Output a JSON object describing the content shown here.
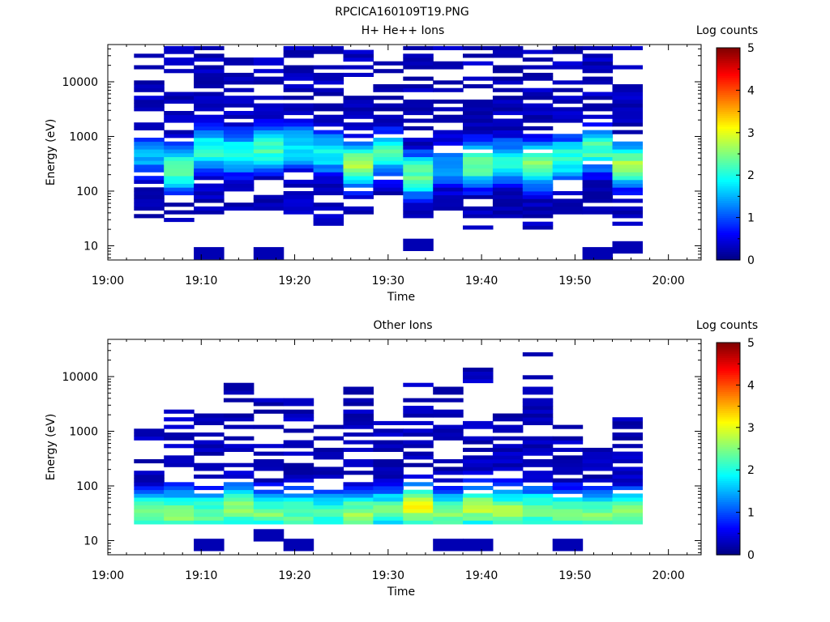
{
  "figure_title": "RPCICA160109T19.PNG",
  "colorbar": {
    "label": "Log counts",
    "ticks": [
      0,
      1,
      2,
      3,
      4,
      5
    ],
    "range": [
      0,
      5
    ]
  },
  "chart_data": [
    {
      "type": "heatmap",
      "title": "H+ He++ Ions",
      "xlabel": "Time",
      "ylabel": "Energy (eV)",
      "x_tick_labels": [
        "19:00",
        "19:10",
        "19:20",
        "19:30",
        "19:40",
        "19:50",
        "20:00"
      ],
      "xlim_minutes": [
        0,
        63.5
      ],
      "y_scale": "log",
      "ylim": [
        5.5,
        48000
      ],
      "y_tick_labels": [
        "10",
        "100",
        "1000",
        "10000"
      ],
      "time_bins_minutes": [
        [
          2.8,
          6.0
        ],
        [
          6.0,
          9.2
        ],
        [
          9.2,
          12.4
        ],
        [
          12.4,
          15.6
        ],
        [
          15.6,
          18.8
        ],
        [
          18.8,
          22.0
        ],
        [
          22.0,
          25.2
        ],
        [
          25.2,
          28.4
        ],
        [
          28.4,
          31.6
        ],
        [
          31.6,
          34.8
        ],
        [
          34.8,
          38.0
        ],
        [
          38.0,
          41.2
        ],
        [
          41.2,
          44.4
        ],
        [
          44.4,
          47.6
        ],
        [
          47.6,
          50.8
        ],
        [
          50.8,
          54.0
        ],
        [
          54.0,
          57.2
        ]
      ],
      "column_profiles": [
        {
          "low_eV": 25,
          "high_eV": 45000,
          "peak_eV": 450,
          "peak_log": 1.5,
          "extra_low_eV": null
        },
        {
          "low_eV": 28,
          "high_eV": 45000,
          "peak_eV": 260,
          "peak_log": 2.4,
          "extra_low_eV": null
        },
        {
          "low_eV": 40,
          "high_eV": 45000,
          "peak_eV": 600,
          "peak_log": 2.1,
          "extra_low_eV": 7
        },
        {
          "low_eV": 30,
          "high_eV": 45000,
          "peak_eV": 500,
          "peak_log": 2.0,
          "extra_low_eV": null
        },
        {
          "low_eV": 18,
          "high_eV": 45000,
          "peak_eV": 600,
          "peak_log": 2.2,
          "extra_low_eV": 7
        },
        {
          "low_eV": 30,
          "high_eV": 45000,
          "peak_eV": 650,
          "peak_log": 1.8,
          "extra_low_eV": null
        },
        {
          "low_eV": 22,
          "high_eV": 45000,
          "peak_eV": 500,
          "peak_log": 1.9,
          "extra_low_eV": null
        },
        {
          "low_eV": 40,
          "high_eV": 45000,
          "peak_eV": 300,
          "peak_log": 2.7,
          "extra_low_eV": null
        },
        {
          "low_eV": 70,
          "high_eV": 45000,
          "peak_eV": 500,
          "peak_log": 2.2,
          "extra_low_eV": null
        },
        {
          "low_eV": 30,
          "high_eV": 45000,
          "peak_eV": 200,
          "peak_log": 2.4,
          "extra_low_eV": 10
        },
        {
          "low_eV": 18,
          "high_eV": 45000,
          "peak_eV": 300,
          "peak_log": 1.4,
          "extra_low_eV": null
        },
        {
          "low_eV": 16,
          "high_eV": 45000,
          "peak_eV": 300,
          "peak_log": 2.4,
          "extra_low_eV": null
        },
        {
          "low_eV": 30,
          "high_eV": 45000,
          "peak_eV": 350,
          "peak_log": 2.0,
          "extra_low_eV": null
        },
        {
          "low_eV": 16,
          "high_eV": 45000,
          "peak_eV": 300,
          "peak_log": 2.6,
          "extra_low_eV": null
        },
        {
          "low_eV": 40,
          "high_eV": 45000,
          "peak_eV": 400,
          "peak_log": 2.1,
          "extra_low_eV": null
        },
        {
          "low_eV": 40,
          "high_eV": 45000,
          "peak_eV": 600,
          "peak_log": 2.3,
          "extra_low_eV": 7
        },
        {
          "low_eV": 25,
          "high_eV": 45000,
          "peak_eV": 300,
          "peak_log": 2.6,
          "extra_low_eV": 9
        }
      ]
    },
    {
      "type": "heatmap",
      "title": "Other Ions",
      "xlabel": "Time",
      "ylabel": "Energy (eV)",
      "x_tick_labels": [
        "19:00",
        "19:10",
        "19:20",
        "19:30",
        "19:40",
        "19:50",
        "20:00"
      ],
      "xlim_minutes": [
        0,
        63.5
      ],
      "y_scale": "log",
      "ylim": [
        5.5,
        48000
      ],
      "y_tick_labels": [
        "10",
        "100",
        "1000",
        "10000"
      ],
      "time_bins_minutes": [
        [
          2.8,
          6.0
        ],
        [
          6.0,
          9.2
        ],
        [
          9.2,
          12.4
        ],
        [
          12.4,
          15.6
        ],
        [
          15.6,
          18.8
        ],
        [
          18.8,
          22.0
        ],
        [
          22.0,
          25.2
        ],
        [
          25.2,
          28.4
        ],
        [
          28.4,
          31.6
        ],
        [
          31.6,
          34.8
        ],
        [
          34.8,
          38.0
        ],
        [
          38.0,
          41.2
        ],
        [
          41.2,
          44.4
        ],
        [
          44.4,
          47.6
        ],
        [
          47.6,
          50.8
        ],
        [
          50.8,
          54.0
        ],
        [
          54.0,
          57.2
        ]
      ],
      "column_profiles": [
        {
          "low_eV": 16,
          "high_eV": 1200,
          "peak_eV": 32,
          "peak_log": 2.6,
          "extra_low_eV": null
        },
        {
          "low_eV": 20,
          "high_eV": 2500,
          "peak_eV": 32,
          "peak_log": 2.6,
          "extra_low_eV": null
        },
        {
          "low_eV": 20,
          "high_eV": 2900,
          "peak_eV": 32,
          "peak_log": 2.4,
          "extra_low_eV": 8
        },
        {
          "low_eV": 20,
          "high_eV": 8000,
          "peak_eV": 40,
          "peak_log": 2.6,
          "extra_low_eV": null
        },
        {
          "low_eV": 20,
          "high_eV": 5000,
          "peak_eV": 32,
          "peak_log": 2.4,
          "extra_low_eV": 12
        },
        {
          "low_eV": 20,
          "high_eV": 5500,
          "peak_eV": 32,
          "peak_log": 2.4,
          "extra_low_eV": 8
        },
        {
          "low_eV": 20,
          "high_eV": 1400,
          "peak_eV": 32,
          "peak_log": 2.2,
          "extra_low_eV": null
        },
        {
          "low_eV": 20,
          "high_eV": 7000,
          "peak_eV": 32,
          "peak_log": 2.6,
          "extra_low_eV": null
        },
        {
          "low_eV": 20,
          "high_eV": 2400,
          "peak_eV": 35,
          "peak_log": 2.4,
          "extra_low_eV": null
        },
        {
          "low_eV": 20,
          "high_eV": 11000,
          "peak_eV": 40,
          "peak_log": 3.0,
          "extra_low_eV": null
        },
        {
          "low_eV": 16,
          "high_eV": 7000,
          "peak_eV": 32,
          "peak_log": 2.6,
          "extra_low_eV": 8
        },
        {
          "low_eV": 20,
          "high_eV": 18000,
          "peak_eV": 40,
          "peak_log": 2.8,
          "extra_low_eV": 8
        },
        {
          "low_eV": 20,
          "high_eV": 2300,
          "peak_eV": 35,
          "peak_log": 2.6,
          "extra_low_eV": null
        },
        {
          "low_eV": 20,
          "high_eV": 27000,
          "peak_eV": 35,
          "peak_log": 2.5,
          "extra_low_eV": null
        },
        {
          "low_eV": 20,
          "high_eV": 1300,
          "peak_eV": 32,
          "peak_log": 2.6,
          "extra_low_eV": 8
        },
        {
          "low_eV": 20,
          "high_eV": 700,
          "peak_eV": 32,
          "peak_log": 2.4,
          "extra_low_eV": null
        },
        {
          "low_eV": 16,
          "high_eV": 1700,
          "peak_eV": 32,
          "peak_log": 2.6,
          "extra_low_eV": null
        }
      ]
    }
  ]
}
